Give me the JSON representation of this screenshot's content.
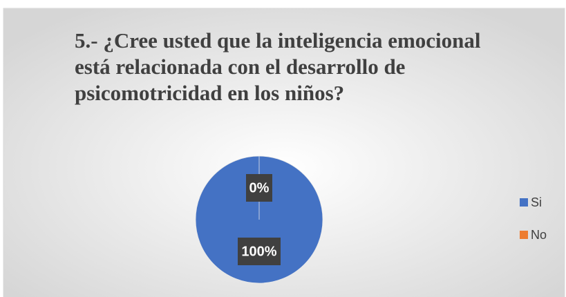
{
  "chart_data": {
    "type": "pie",
    "title": "5.- ¿Cree usted que la inteligencia emocional está relacionada con el desarrollo de psicomotricidad en los niños?",
    "categories": [
      "Si",
      "No"
    ],
    "values": [
      100,
      0
    ],
    "value_labels": [
      "100%",
      "0%"
    ],
    "colors": [
      "#4472c4",
      "#ed7d31"
    ],
    "legend": "right"
  }
}
